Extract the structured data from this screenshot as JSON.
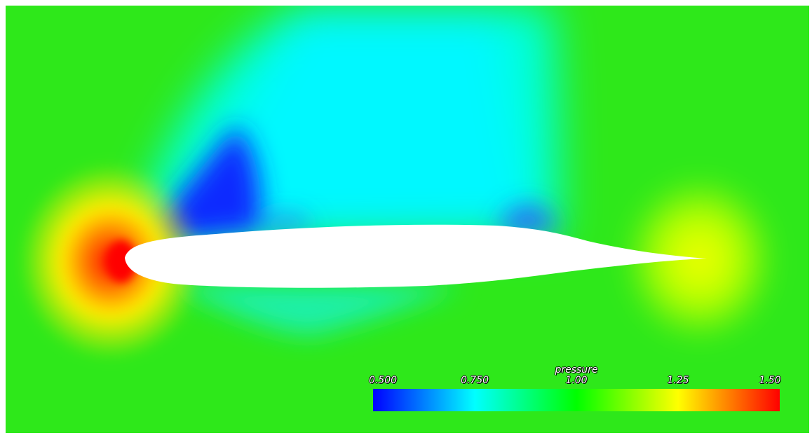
{
  "colorbar": {
    "title": "pressure",
    "range": [
      0.5,
      1.5
    ],
    "ticks": [
      {
        "value": 0.5,
        "label": "0.500"
      },
      {
        "value": 0.75,
        "label": "0.750"
      },
      {
        "value": 1.0,
        "label": "1.00"
      },
      {
        "value": 1.25,
        "label": "1.25"
      },
      {
        "value": 1.5,
        "label": "1.50"
      }
    ],
    "colors": {
      "low": "#0000ff",
      "quarter": "#00ffff",
      "mid": "#00ff00",
      "three_quarter": "#ffff00",
      "high": "#ff0000"
    }
  },
  "field": {
    "freestream_color": "#2ee81a",
    "airfoil_color": "#ffffff"
  }
}
